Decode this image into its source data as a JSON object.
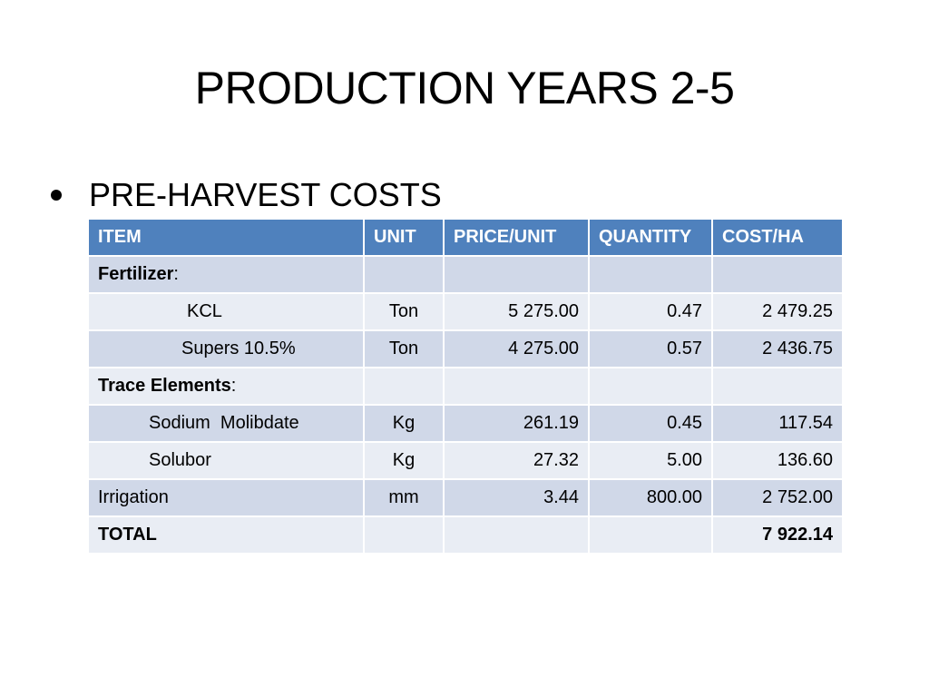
{
  "slide": {
    "title": "PRODUCTION YEARS 2-5",
    "bullet": "PRE-HARVEST COSTS"
  },
  "table": {
    "headers": [
      "ITEM",
      "UNIT",
      "PRICE/UNIT",
      "QUANTITY",
      "COST/HA"
    ],
    "rows": [
      {
        "item": "Fertilizer",
        "item_suffix": ":",
        "unit": "",
        "price": "",
        "quantity": "",
        "cost": ""
      },
      {
        "item": "KCL",
        "unit": "Ton",
        "price": "5 275.00",
        "quantity": "0.47",
        "cost": "2 479.25"
      },
      {
        "item": "Supers 10.5%",
        "unit": "Ton",
        "price": "4 275.00",
        "quantity": "0.57",
        "cost": "2 436.75"
      },
      {
        "item": "Trace Elements",
        "item_suffix": ":",
        "unit": "",
        "price": "",
        "quantity": "",
        "cost": ""
      },
      {
        "item": "Sodium  Molibdate",
        "unit": "Kg",
        "price": "261.19",
        "quantity": "0.45",
        "cost": "117.54"
      },
      {
        "item": "Solubor",
        "unit": "Kg",
        "price": "27.32",
        "quantity": "5.00",
        "cost": "136.60"
      },
      {
        "item": "Irrigation",
        "unit": "mm",
        "price": "3.44",
        "quantity": "800.00",
        "cost": "2 752.00"
      },
      {
        "item": "TOTAL",
        "unit": "",
        "price": "",
        "quantity": "",
        "cost": "7 922.14"
      }
    ]
  },
  "colors": {
    "header_bg": "#4f81bd",
    "row_dark": "#d0d8e8",
    "row_light": "#e9edf4"
  }
}
